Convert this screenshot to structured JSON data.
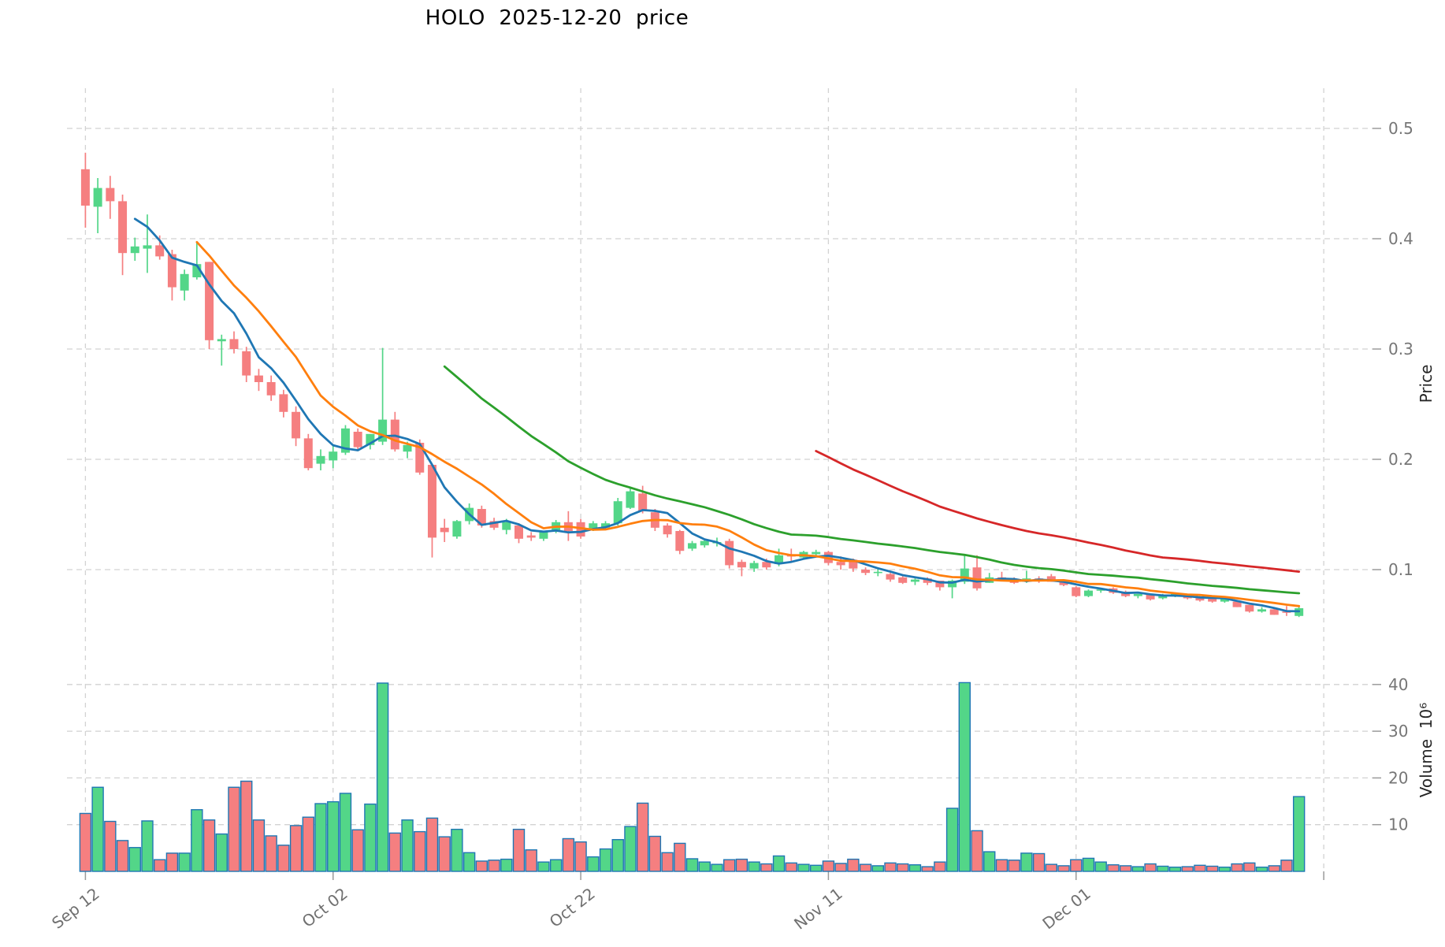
{
  "title": "HOLO  2025-12-20  price",
  "axes": {
    "price_label": "Price",
    "volume_label": "Volume  10⁶",
    "price_ticks": [
      0.1,
      0.2,
      0.3,
      0.4,
      0.5
    ],
    "volume_ticks": [
      10,
      20,
      30,
      40
    ],
    "x_tick_labels": [
      "Sep 12",
      "Oct 02",
      "Oct 22",
      "Nov 11",
      "Dec 01"
    ],
    "x_tick_indices": [
      0,
      20,
      40,
      60,
      80
    ],
    "extra_gridline_index": 100
  },
  "colors": {
    "up": "#53d688",
    "down": "#f57f80",
    "volume_edge": "#1f77b4",
    "grid": "#d2d2d2",
    "tick_text": "#767676",
    "tick_mark": "#9a9a9a",
    "title_text": "#000000"
  },
  "chart_data": {
    "type": "candlestick+volume",
    "title": "HOLO  2025-12-20  price",
    "ylabel": "Price",
    "ylabel2": "Volume 10^6",
    "price_range_gridlines": [
      0.1,
      0.5
    ],
    "volume_gridlines": [
      10,
      20,
      30,
      40
    ],
    "grid": true,
    "moving_averages": [
      {
        "name": "MA5",
        "period": 5,
        "color": "#1f77b4"
      },
      {
        "name": "MA10",
        "period": 10,
        "color": "#ff7f0e"
      },
      {
        "name": "MA30",
        "period": 30,
        "color": "#2ca02c"
      },
      {
        "name": "MA60",
        "period": 60,
        "color": "#d62728"
      }
    ],
    "columns": [
      "date",
      "open",
      "high",
      "low",
      "close",
      "volume_millions"
    ],
    "candles": [
      [
        "2025-09-12",
        0.463,
        0.478,
        0.41,
        0.43,
        12.4
      ],
      [
        "2025-09-13",
        0.429,
        0.455,
        0.405,
        0.446,
        18.0
      ],
      [
        "2025-09-14",
        0.446,
        0.457,
        0.418,
        0.434,
        10.7
      ],
      [
        "2025-09-15",
        0.434,
        0.44,
        0.367,
        0.387,
        6.6
      ],
      [
        "2025-09-16",
        0.387,
        0.401,
        0.38,
        0.393,
        5.1
      ],
      [
        "2025-09-17",
        0.391,
        0.422,
        0.369,
        0.394,
        10.8
      ],
      [
        "2025-09-18",
        0.394,
        0.403,
        0.381,
        0.384,
        2.5
      ],
      [
        "2025-09-19",
        0.386,
        0.39,
        0.344,
        0.356,
        3.9
      ],
      [
        "2025-09-20",
        0.353,
        0.372,
        0.344,
        0.368,
        3.9
      ],
      [
        "2025-09-21",
        0.365,
        0.397,
        0.363,
        0.377,
        13.2
      ],
      [
        "2025-09-22",
        0.379,
        0.379,
        0.3,
        0.308,
        11.0
      ],
      [
        "2025-09-23",
        0.307,
        0.313,
        0.285,
        0.309,
        8.0
      ],
      [
        "2025-09-24",
        0.309,
        0.316,
        0.296,
        0.3,
        18.0
      ],
      [
        "2025-09-25",
        0.298,
        0.302,
        0.27,
        0.276,
        19.3
      ],
      [
        "2025-09-26",
        0.276,
        0.282,
        0.262,
        0.27,
        11.0
      ],
      [
        "2025-09-27",
        0.27,
        0.276,
        0.253,
        0.258,
        7.6
      ],
      [
        "2025-09-28",
        0.259,
        0.263,
        0.238,
        0.243,
        5.6
      ],
      [
        "2025-09-29",
        0.243,
        0.248,
        0.212,
        0.219,
        9.8
      ],
      [
        "2025-09-30",
        0.219,
        0.223,
        0.19,
        0.192,
        11.6
      ],
      [
        "2025-10-01",
        0.196,
        0.209,
        0.19,
        0.203,
        14.5
      ],
      [
        "2025-10-02",
        0.199,
        0.212,
        0.192,
        0.207,
        14.9
      ],
      [
        "2025-10-03",
        0.206,
        0.231,
        0.204,
        0.228,
        16.7
      ],
      [
        "2025-10-04",
        0.225,
        0.228,
        0.209,
        0.211,
        8.9
      ],
      [
        "2025-10-05",
        0.213,
        0.223,
        0.209,
        0.223,
        14.4
      ],
      [
        "2025-10-06",
        0.216,
        0.301,
        0.213,
        0.236,
        40.3
      ],
      [
        "2025-10-07",
        0.236,
        0.243,
        0.207,
        0.209,
        8.2
      ],
      [
        "2025-10-08",
        0.207,
        0.216,
        0.201,
        0.213,
        11.0
      ],
      [
        "2025-10-09",
        0.215,
        0.218,
        0.186,
        0.188,
        8.5
      ],
      [
        "2025-10-10",
        0.195,
        0.195,
        0.111,
        0.129,
        11.4
      ],
      [
        "2025-10-11",
        0.138,
        0.146,
        0.125,
        0.134,
        7.4
      ],
      [
        "2025-10-12",
        0.13,
        0.145,
        0.128,
        0.144,
        9.0
      ],
      [
        "2025-10-13",
        0.144,
        0.16,
        0.141,
        0.156,
        4.0
      ],
      [
        "2025-10-14",
        0.155,
        0.158,
        0.138,
        0.14,
        2.2
      ],
      [
        "2025-10-15",
        0.144,
        0.147,
        0.136,
        0.138,
        2.4
      ],
      [
        "2025-10-16",
        0.136,
        0.146,
        0.132,
        0.143,
        2.6
      ],
      [
        "2025-10-17",
        0.14,
        0.142,
        0.124,
        0.128,
        9.0
      ],
      [
        "2025-10-18",
        0.131,
        0.134,
        0.126,
        0.129,
        4.6
      ],
      [
        "2025-10-19",
        0.128,
        0.135,
        0.126,
        0.134,
        2.0
      ],
      [
        "2025-10-20",
        0.135,
        0.145,
        0.133,
        0.143,
        2.5
      ],
      [
        "2025-10-21",
        0.143,
        0.153,
        0.126,
        0.135,
        7.0
      ],
      [
        "2025-10-22",
        0.143,
        0.146,
        0.128,
        0.13,
        6.3
      ],
      [
        "2025-10-23",
        0.137,
        0.144,
        0.135,
        0.142,
        3.1
      ],
      [
        "2025-10-24",
        0.138,
        0.144,
        0.136,
        0.142,
        4.8
      ],
      [
        "2025-10-25",
        0.142,
        0.165,
        0.14,
        0.162,
        6.8
      ],
      [
        "2025-10-26",
        0.156,
        0.174,
        0.155,
        0.171,
        9.6
      ],
      [
        "2025-10-27",
        0.169,
        0.176,
        0.151,
        0.153,
        14.6
      ],
      [
        "2025-10-28",
        0.152,
        0.155,
        0.135,
        0.138,
        7.5
      ],
      [
        "2025-10-29",
        0.14,
        0.142,
        0.129,
        0.132,
        4.0
      ],
      [
        "2025-10-30",
        0.135,
        0.136,
        0.114,
        0.117,
        6.0
      ],
      [
        "2025-10-31",
        0.119,
        0.126,
        0.117,
        0.124,
        2.7
      ],
      [
        "2025-11-01",
        0.122,
        0.128,
        0.12,
        0.126,
        2.0
      ],
      [
        "2025-11-02",
        0.125,
        0.129,
        0.121,
        0.125,
        1.5
      ],
      [
        "2025-11-03",
        0.126,
        0.128,
        0.101,
        0.104,
        2.5
      ],
      [
        "2025-11-04",
        0.107,
        0.109,
        0.094,
        0.102,
        2.6
      ],
      [
        "2025-11-05",
        0.101,
        0.108,
        0.098,
        0.106,
        2.0
      ],
      [
        "2025-11-06",
        0.107,
        0.11,
        0.1,
        0.102,
        1.6
      ],
      [
        "2025-11-07",
        0.105,
        0.119,
        0.103,
        0.113,
        3.3
      ],
      [
        "2025-11-08",
        0.113,
        0.119,
        0.107,
        0.112,
        1.8
      ],
      [
        "2025-11-09",
        0.111,
        0.117,
        0.109,
        0.116,
        1.5
      ],
      [
        "2025-11-10",
        0.114,
        0.118,
        0.112,
        0.116,
        1.3
      ],
      [
        "2025-11-11",
        0.116,
        0.117,
        0.104,
        0.106,
        2.2
      ],
      [
        "2025-11-12",
        0.107,
        0.112,
        0.1,
        0.104,
        1.7
      ],
      [
        "2025-11-13",
        0.109,
        0.11,
        0.098,
        0.101,
        2.6
      ],
      [
        "2025-11-14",
        0.1,
        0.102,
        0.095,
        0.097,
        1.5
      ],
      [
        "2025-11-15",
        0.098,
        0.102,
        0.094,
        0.098,
        1.2
      ],
      [
        "2025-11-16",
        0.096,
        0.097,
        0.089,
        0.091,
        1.8
      ],
      [
        "2025-11-17",
        0.093,
        0.094,
        0.087,
        0.088,
        1.6
      ],
      [
        "2025-11-18",
        0.089,
        0.092,
        0.086,
        0.091,
        1.4
      ],
      [
        "2025-11-19",
        0.092,
        0.093,
        0.086,
        0.088,
        1.0
      ],
      [
        "2025-11-20",
        0.09,
        0.09,
        0.081,
        0.084,
        2.0
      ],
      [
        "2025-11-21",
        0.084,
        0.091,
        0.074,
        0.09,
        13.5
      ],
      [
        "2025-11-22",
        0.089,
        0.113,
        0.087,
        0.101,
        40.4
      ],
      [
        "2025-11-23",
        0.102,
        0.113,
        0.081,
        0.083,
        8.7
      ],
      [
        "2025-11-24",
        0.088,
        0.097,
        0.088,
        0.093,
        4.2
      ],
      [
        "2025-11-25",
        0.093,
        0.098,
        0.09,
        0.092,
        2.5
      ],
      [
        "2025-11-26",
        0.091,
        0.093,
        0.087,
        0.088,
        2.4
      ],
      [
        "2025-11-27",
        0.089,
        0.099,
        0.088,
        0.092,
        3.9
      ],
      [
        "2025-11-28",
        0.092,
        0.094,
        0.088,
        0.09,
        3.8
      ],
      [
        "2025-11-29",
        0.094,
        0.096,
        0.089,
        0.089,
        1.5
      ],
      [
        "2025-11-30",
        0.09,
        0.091,
        0.085,
        0.086,
        1.2
      ],
      [
        "2025-12-01",
        0.084,
        0.085,
        0.075,
        0.076,
        2.5
      ],
      [
        "2025-12-02",
        0.076,
        0.082,
        0.075,
        0.081,
        2.8
      ],
      [
        "2025-12-03",
        0.081,
        0.083,
        0.079,
        0.082,
        2.0
      ],
      [
        "2025-12-04",
        0.083,
        0.084,
        0.078,
        0.079,
        1.4
      ],
      [
        "2025-12-05",
        0.08,
        0.081,
        0.075,
        0.076,
        1.2
      ],
      [
        "2025-12-06",
        0.076,
        0.078,
        0.074,
        0.078,
        1.0
      ],
      [
        "2025-12-07",
        0.078,
        0.078,
        0.072,
        0.073,
        1.6
      ],
      [
        "2025-12-08",
        0.074,
        0.078,
        0.073,
        0.077,
        1.1
      ],
      [
        "2025-12-09",
        0.077,
        0.079,
        0.075,
        0.078,
        0.9
      ],
      [
        "2025-12-10",
        0.077,
        0.077,
        0.073,
        0.074,
        1.0
      ],
      [
        "2025-12-11",
        0.075,
        0.076,
        0.071,
        0.072,
        1.3
      ],
      [
        "2025-12-12",
        0.074,
        0.074,
        0.07,
        0.071,
        1.1
      ],
      [
        "2025-12-13",
        0.071,
        0.075,
        0.07,
        0.075,
        0.9
      ],
      [
        "2025-12-14",
        0.071,
        0.072,
        0.066,
        0.066,
        1.6
      ],
      [
        "2025-12-15",
        0.068,
        0.068,
        0.061,
        0.062,
        1.8
      ],
      [
        "2025-12-16",
        0.062,
        0.066,
        0.061,
        0.064,
        0.9
      ],
      [
        "2025-12-17",
        0.064,
        0.065,
        0.059,
        0.059,
        1.2
      ],
      [
        "2025-12-18",
        0.062,
        0.067,
        0.058,
        0.061,
        2.4
      ],
      [
        "2025-12-19",
        0.058,
        0.067,
        0.057,
        0.065,
        16.0
      ]
    ]
  }
}
